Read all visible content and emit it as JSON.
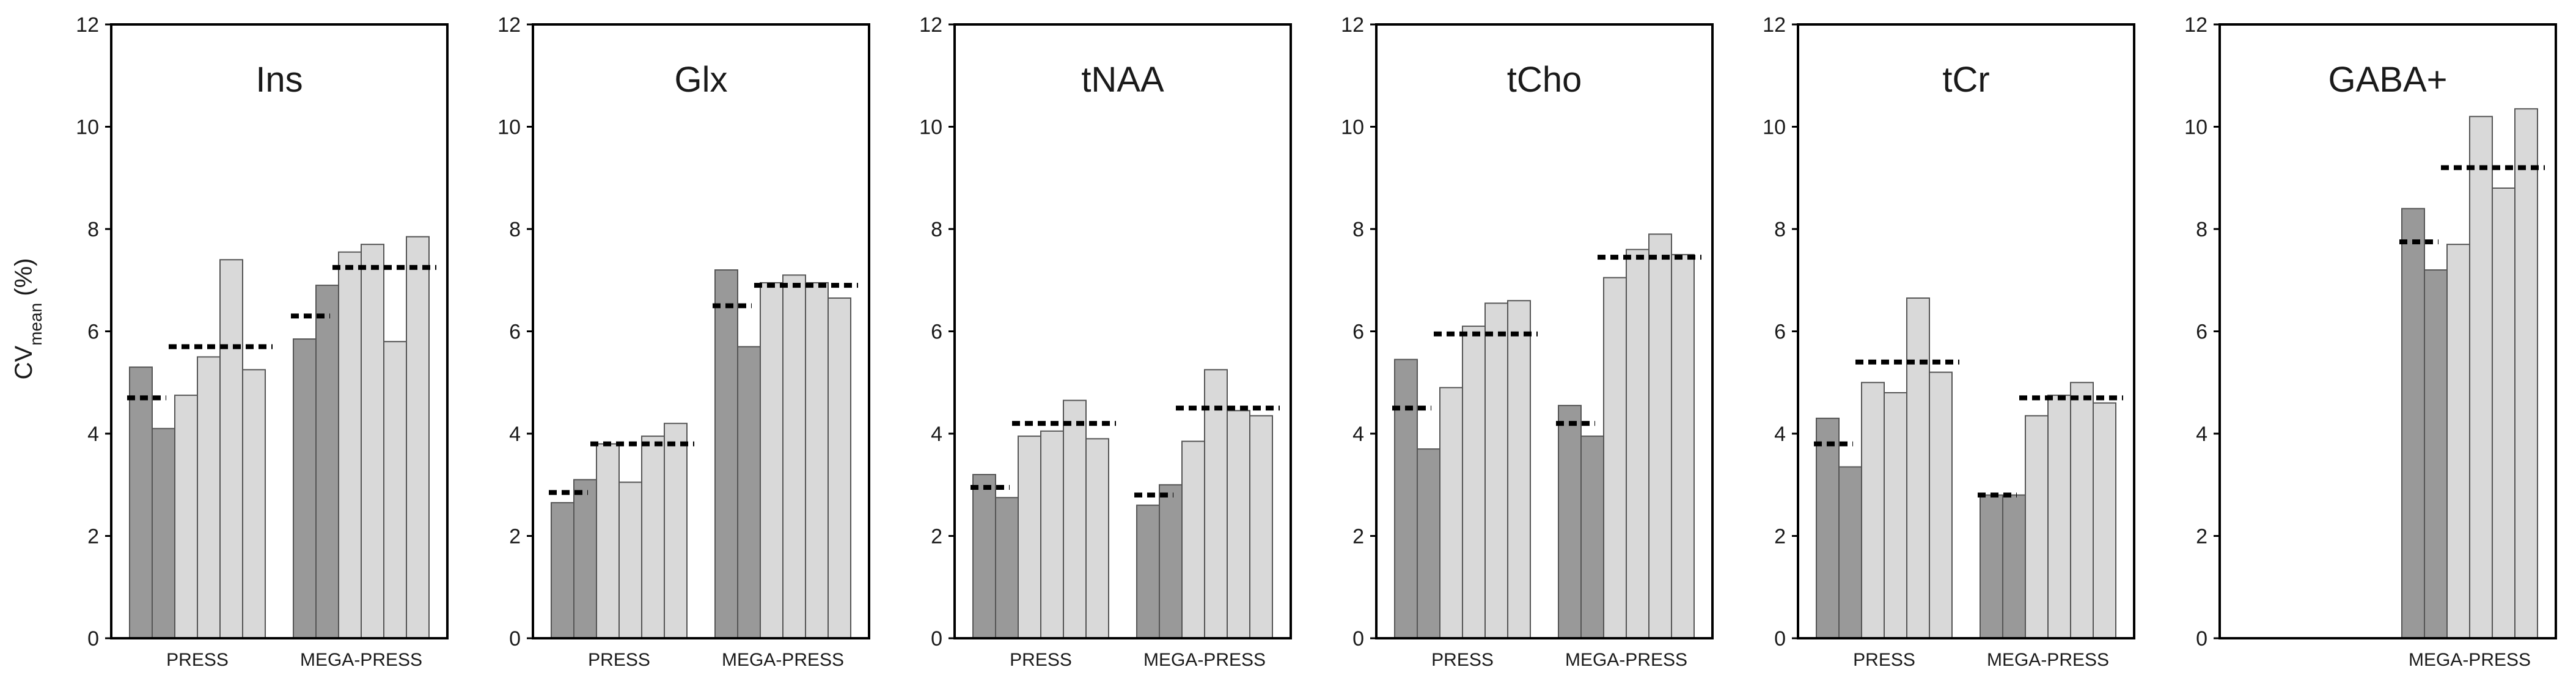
{
  "y_axis": {
    "label_main": "CV",
    "label_sub": "mean",
    "label_unit": " (%)"
  },
  "colors": {
    "dark_bar": "#999999",
    "light_bar": "#d9d9d9",
    "bar_stroke": "#555555",
    "mean_line": "#000000",
    "frame": "#000000"
  },
  "chart_data": [
    {
      "type": "bar",
      "title": "Ins",
      "ylim": [
        0,
        12
      ],
      "yticks": [
        0,
        2,
        4,
        6,
        8,
        10,
        12
      ],
      "grid": false,
      "groups": [
        {
          "label": "PRESS",
          "bar_values": [
            5.3,
            4.1,
            4.75,
            5.5,
            7.4,
            5.25
          ],
          "bar_shades": [
            "dark",
            "dark",
            "light",
            "light",
            "light",
            "light"
          ],
          "means": [
            4.7,
            5.7
          ]
        },
        {
          "label": "MEGA-PRESS",
          "bar_values": [
            5.85,
            6.9,
            7.55,
            7.7,
            5.8,
            7.85
          ],
          "bar_shades": [
            "dark",
            "dark",
            "light",
            "light",
            "light",
            "light"
          ],
          "means": [
            6.3,
            7.25
          ]
        }
      ]
    },
    {
      "type": "bar",
      "title": "Glx",
      "ylim": [
        0,
        12
      ],
      "yticks": [
        0,
        2,
        4,
        6,
        8,
        10,
        12
      ],
      "grid": false,
      "groups": [
        {
          "label": "PRESS",
          "bar_values": [
            2.65,
            3.1,
            3.8,
            3.05,
            3.95,
            4.2
          ],
          "bar_shades": [
            "dark",
            "dark",
            "light",
            "light",
            "light",
            "light"
          ],
          "means": [
            2.85,
            3.8
          ]
        },
        {
          "label": "MEGA-PRESS",
          "bar_values": [
            7.2,
            5.7,
            6.95,
            7.1,
            6.95,
            6.65
          ],
          "bar_shades": [
            "dark",
            "dark",
            "light",
            "light",
            "light",
            "light"
          ],
          "means": [
            6.5,
            6.9
          ]
        }
      ]
    },
    {
      "type": "bar",
      "title": "tNAA",
      "ylim": [
        0,
        12
      ],
      "yticks": [
        0,
        2,
        4,
        6,
        8,
        10,
        12
      ],
      "grid": false,
      "groups": [
        {
          "label": "PRESS",
          "bar_values": [
            3.2,
            2.75,
            3.95,
            4.05,
            4.65,
            3.9
          ],
          "bar_shades": [
            "dark",
            "dark",
            "light",
            "light",
            "light",
            "light"
          ],
          "means": [
            2.95,
            4.2
          ]
        },
        {
          "label": "MEGA-PRESS",
          "bar_values": [
            2.6,
            3.0,
            3.85,
            5.25,
            4.45,
            4.35
          ],
          "bar_shades": [
            "dark",
            "dark",
            "light",
            "light",
            "light",
            "light"
          ],
          "means": [
            2.8,
            4.5
          ]
        }
      ]
    },
    {
      "type": "bar",
      "title": "tCho",
      "ylim": [
        0,
        12
      ],
      "yticks": [
        0,
        2,
        4,
        6,
        8,
        10,
        12
      ],
      "grid": false,
      "groups": [
        {
          "label": "PRESS",
          "bar_values": [
            5.45,
            3.7,
            4.9,
            6.1,
            6.55,
            6.6
          ],
          "bar_shades": [
            "dark",
            "dark",
            "light",
            "light",
            "light",
            "light"
          ],
          "means": [
            4.5,
            5.95
          ]
        },
        {
          "label": "MEGA-PRESS",
          "bar_values": [
            4.55,
            3.95,
            7.05,
            7.6,
            7.9,
            7.5
          ],
          "bar_shades": [
            "dark",
            "dark",
            "light",
            "light",
            "light",
            "light"
          ],
          "means": [
            4.2,
            7.45
          ]
        }
      ]
    },
    {
      "type": "bar",
      "title": "tCr",
      "ylim": [
        0,
        12
      ],
      "yticks": [
        0,
        2,
        4,
        6,
        8,
        10,
        12
      ],
      "grid": false,
      "groups": [
        {
          "label": "PRESS",
          "bar_values": [
            4.3,
            3.35,
            5.0,
            4.8,
            6.65,
            5.2
          ],
          "bar_shades": [
            "dark",
            "dark",
            "light",
            "light",
            "light",
            "light"
          ],
          "means": [
            3.8,
            5.4
          ]
        },
        {
          "label": "MEGA-PRESS",
          "bar_values": [
            2.8,
            2.8,
            4.35,
            4.75,
            5.0,
            4.6
          ],
          "bar_shades": [
            "dark",
            "dark",
            "light",
            "light",
            "light",
            "light"
          ],
          "means": [
            2.8,
            4.7
          ]
        }
      ]
    },
    {
      "type": "bar",
      "title": "GABA+",
      "ylim": [
        0,
        12
      ],
      "yticks": [
        0,
        2,
        4,
        6,
        8,
        10,
        12
      ],
      "grid": false,
      "groups": [
        {
          "label": "",
          "bar_values": [],
          "bar_shades": [],
          "means": []
        },
        {
          "label": "MEGA-PRESS",
          "bar_values": [
            8.4,
            7.2,
            7.7,
            10.2,
            8.8,
            10.35
          ],
          "bar_shades": [
            "dark",
            "dark",
            "light",
            "light",
            "light",
            "light"
          ],
          "means": [
            7.75,
            9.2
          ]
        }
      ]
    }
  ]
}
